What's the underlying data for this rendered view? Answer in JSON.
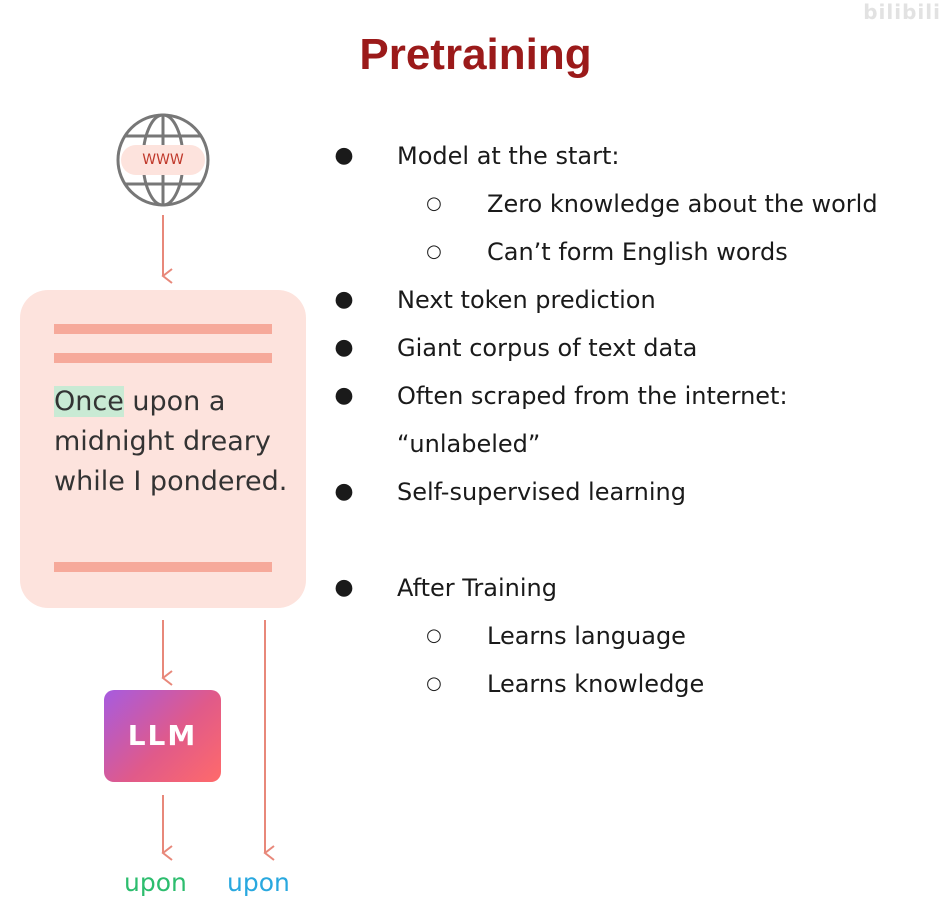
{
  "watermark": "bilibili",
  "title": "Pretraining",
  "diagram": {
    "www_label": "WWW",
    "card_text_highlight": "Once",
    "card_text_rest": " upon a midnight dreary while I pondered.",
    "model_label": "LLM",
    "predicted_output": "upon",
    "target_output": "upon",
    "colors": {
      "title": "#9b1a1a",
      "card": "#fde3dd",
      "bar": "#f6a99a",
      "arrow": "#e8887a",
      "highlight": "#c9ead4",
      "predicted": "#2dbd6e",
      "target": "#29a8df"
    }
  },
  "bullets": [
    {
      "level": 1,
      "text": "Model at the start:"
    },
    {
      "level": 2,
      "text": "Zero knowledge about the world"
    },
    {
      "level": 2,
      "text": "Can’t form English words"
    },
    {
      "level": 1,
      "text": "Next token prediction"
    },
    {
      "level": 1,
      "text": "Giant corpus of text data"
    },
    {
      "level": 1,
      "text": "Often scraped from the internet:"
    },
    {
      "level": 0,
      "text": "“unlabeled”"
    },
    {
      "level": 1,
      "text": "Self-supervised learning"
    },
    {
      "level": 1,
      "text": "After Training"
    },
    {
      "level": 2,
      "text": "Learns language"
    },
    {
      "level": 2,
      "text": "Learns knowledge"
    }
  ],
  "markers": {
    "level1": "●",
    "level2": "○"
  }
}
